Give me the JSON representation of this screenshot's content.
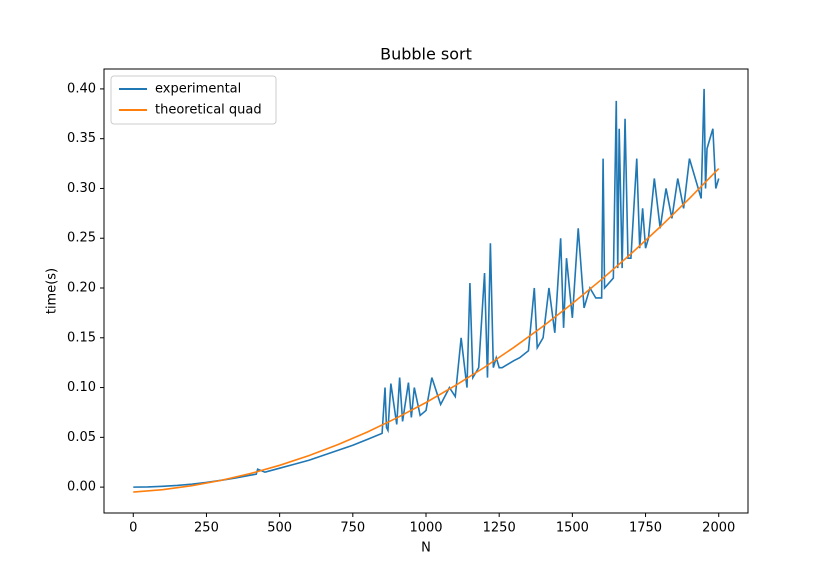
{
  "chart_data": {
    "type": "line",
    "title": "Bubble sort",
    "x_label": "N",
    "y_label": "time(s)",
    "xlim": [
      -100,
      2100
    ],
    "ylim": [
      -0.026,
      0.42
    ],
    "xticks": [
      0,
      250,
      500,
      750,
      1000,
      1250,
      1500,
      1750,
      2000
    ],
    "yticks": [
      {
        "value": 0,
        "label": "0.00"
      },
      {
        "value": 0.05,
        "label": "0.05"
      },
      {
        "value": 0.1,
        "label": "0.10"
      },
      {
        "value": 0.15,
        "label": "0.15"
      },
      {
        "value": 0.2,
        "label": "0.20"
      },
      {
        "value": 0.25,
        "label": "0.25"
      },
      {
        "value": 0.3,
        "label": "0.30"
      },
      {
        "value": 0.35,
        "label": "0.35"
      },
      {
        "value": 0.4,
        "label": "0.40"
      }
    ],
    "legend": "upper left",
    "series": [
      {
        "name": "experimental",
        "color": "#1f77b4",
        "x": [
          0,
          50,
          100,
          150,
          200,
          250,
          300,
          350,
          400,
          420,
          425,
          450,
          500,
          550,
          600,
          650,
          700,
          750,
          800,
          850,
          860,
          865,
          870,
          880,
          900,
          910,
          920,
          940,
          950,
          960,
          980,
          1000,
          1020,
          1050,
          1080,
          1100,
          1120,
          1140,
          1150,
          1160,
          1180,
          1200,
          1210,
          1220,
          1230,
          1240,
          1250,
          1260,
          1300,
          1320,
          1350,
          1370,
          1380,
          1400,
          1420,
          1440,
          1460,
          1470,
          1480,
          1500,
          1520,
          1540,
          1560,
          1580,
          1600,
          1605,
          1610,
          1640,
          1650,
          1655,
          1660,
          1670,
          1680,
          1690,
          1700,
          1720,
          1730,
          1740,
          1750,
          1760,
          1780,
          1800,
          1820,
          1840,
          1860,
          1880,
          1900,
          1940,
          1950,
          1955,
          1960,
          1980,
          1990,
          2000
        ],
        "values": [
          0,
          0.0002,
          0.0008,
          0.0017,
          0.003,
          0.0047,
          0.0068,
          0.0092,
          0.012,
          0.013,
          0.018,
          0.015,
          0.019,
          0.023,
          0.027,
          0.032,
          0.037,
          0.042,
          0.048,
          0.054,
          0.1,
          0.06,
          0.057,
          0.104,
          0.063,
          0.11,
          0.066,
          0.105,
          0.07,
          0.1,
          0.072,
          0.077,
          0.11,
          0.083,
          0.1,
          0.091,
          0.15,
          0.1,
          0.205,
          0.11,
          0.12,
          0.215,
          0.11,
          0.245,
          0.12,
          0.13,
          0.12,
          0.12,
          0.127,
          0.13,
          0.137,
          0.2,
          0.14,
          0.15,
          0.2,
          0.155,
          0.25,
          0.16,
          0.23,
          0.17,
          0.26,
          0.18,
          0.2,
          0.19,
          0.19,
          0.33,
          0.2,
          0.21,
          0.388,
          0.22,
          0.36,
          0.22,
          0.37,
          0.23,
          0.23,
          0.33,
          0.24,
          0.28,
          0.24,
          0.25,
          0.31,
          0.26,
          0.3,
          0.27,
          0.31,
          0.28,
          0.33,
          0.29,
          0.4,
          0.3,
          0.34,
          0.36,
          0.3,
          0.31
        ]
      },
      {
        "name": "theoretical quad",
        "color": "#ff7f0e",
        "x": [
          0,
          100,
          200,
          300,
          400,
          500,
          600,
          700,
          800,
          900,
          1000,
          1100,
          1200,
          1300,
          1400,
          1500,
          1600,
          1700,
          1800,
          1900,
          2000
        ],
        "values": [
          -0.005,
          -0.0026,
          0.0014,
          0.0068,
          0.0136,
          0.0219,
          0.0316,
          0.0428,
          0.0554,
          0.0695,
          0.085,
          0.102,
          0.1204,
          0.1403,
          0.1616,
          0.1844,
          0.2086,
          0.2343,
          0.2614,
          0.29,
          0.32
        ]
      }
    ]
  }
}
